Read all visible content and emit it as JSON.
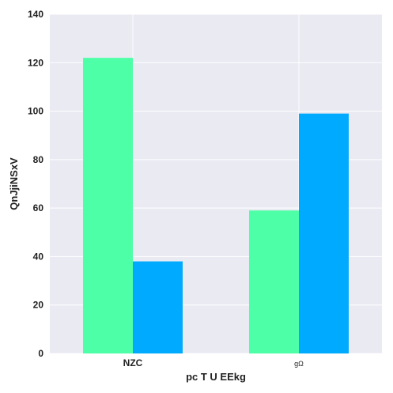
{
  "chart_data": {
    "type": "bar",
    "title": "",
    "xlabel": "pc T U EEkg",
    "ylabel": "QnJjiNSxV",
    "categories": [
      "NZC",
      "gΩ"
    ],
    "series": [
      {
        "color": "#4dffa6",
        "values": [
          122,
          59
        ]
      },
      {
        "color": "#00aaff",
        "values": [
          38,
          99
        ]
      }
    ],
    "ylim": [
      0,
      140
    ],
    "yticks": [
      0,
      20,
      40,
      60,
      80,
      100,
      120,
      140
    ],
    "grid": true,
    "legend": "none",
    "background": "#e9eaf2"
  }
}
